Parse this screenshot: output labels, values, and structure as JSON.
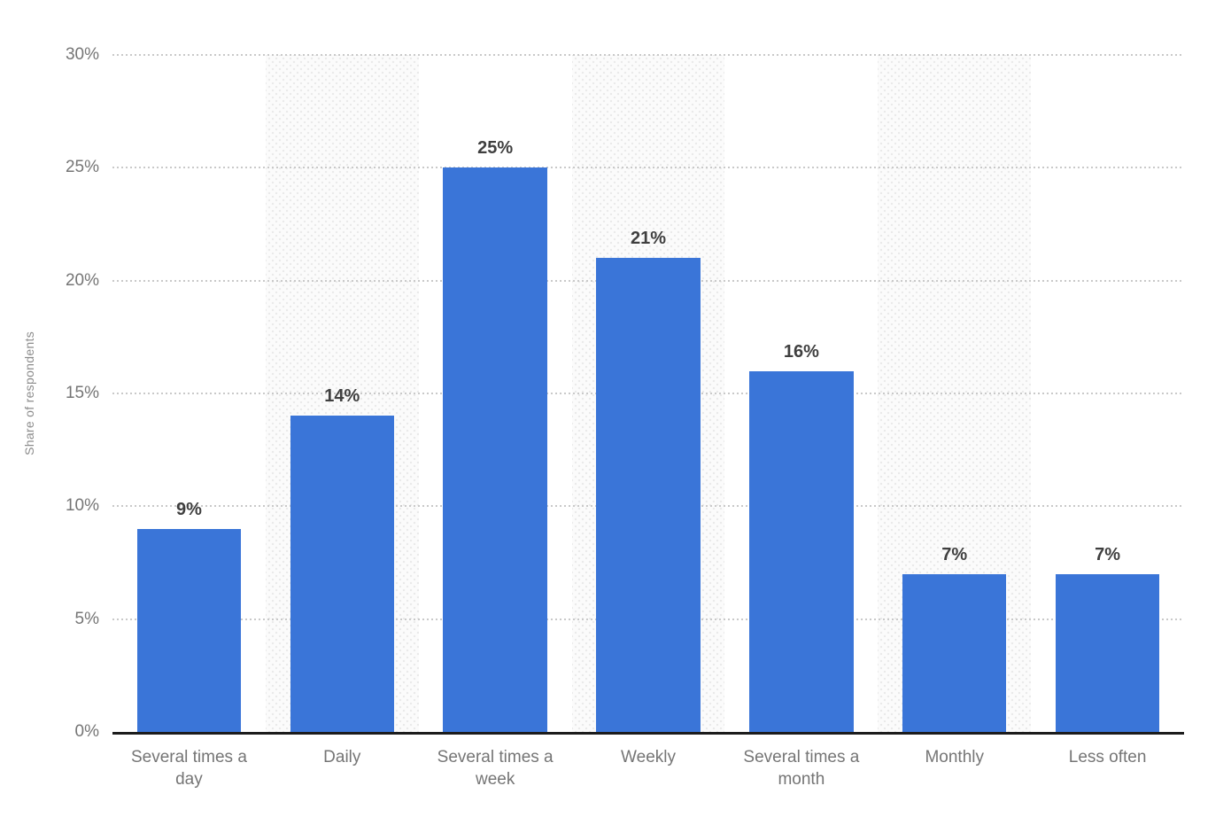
{
  "chart_data": {
    "type": "bar",
    "title": "",
    "xlabel": "",
    "ylabel": "Share of respondents",
    "categories": [
      "Several times a day",
      "Daily",
      "Several times a week",
      "Weekly",
      "Several times a month",
      "Monthly",
      "Less often"
    ],
    "values": [
      9,
      14,
      25,
      21,
      16,
      7,
      7
    ],
    "value_labels": [
      "9%",
      "14%",
      "25%",
      "21%",
      "16%",
      "7%",
      "7%"
    ],
    "ylim": [
      0,
      30
    ],
    "yticks": [
      0,
      5,
      10,
      15,
      20,
      25,
      30
    ],
    "ytick_labels": [
      "0%",
      "5%",
      "10%",
      "15%",
      "20%",
      "25%",
      "30%"
    ],
    "grid": "horizontal-dotted",
    "legend_position": "none",
    "banded_columns": [
      1,
      3,
      5
    ]
  },
  "style": {
    "background": "#FFFFFF",
    "bar_color": "#3A75D8",
    "value_label_color": "#3F3F3F",
    "tick_label_color": "#757575",
    "axis_title_color": "#8C8C8C",
    "gridline_color": "#C9C9C9",
    "baseline_color": "#1C1C1C",
    "band_background": "#FBFBFB",
    "band_dot_color": "#E9E9E9"
  }
}
